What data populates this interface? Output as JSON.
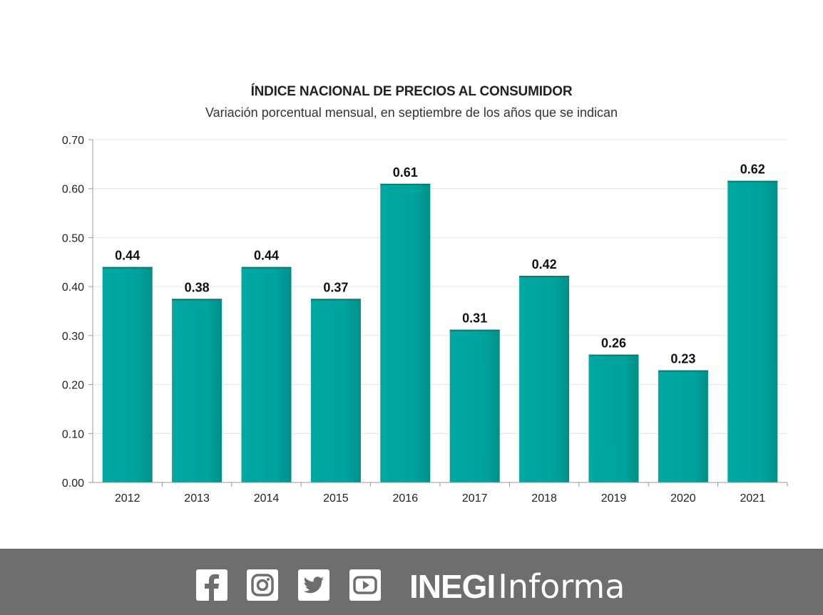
{
  "chart_data": {
    "type": "bar",
    "title": "ÍNDICE NACIONAL DE PRECIOS AL CONSUMIDOR",
    "subtitle": "Variación porcentual mensual, en septiembre de los años que se indican",
    "categories": [
      "2012",
      "2013",
      "2014",
      "2015",
      "2016",
      "2017",
      "2018",
      "2019",
      "2020",
      "2021"
    ],
    "values": [
      0.44,
      0.375,
      0.44,
      0.375,
      0.61,
      0.312,
      0.422,
      0.261,
      0.229,
      0.616
    ],
    "data_labels": [
      "0.44",
      "0.38",
      "0.44",
      "0.37",
      "0.61",
      "0.31",
      "0.42",
      "0.26",
      "0.23",
      "0.62"
    ],
    "y_ticks": [
      "0.00",
      "0.10",
      "0.20",
      "0.30",
      "0.40",
      "0.50",
      "0.60",
      "0.70"
    ],
    "ylim": [
      0,
      0.7
    ],
    "grid": true,
    "bar_color": "#00a39c",
    "xlabel": "",
    "ylabel": ""
  },
  "footer": {
    "background": "#6d6e70",
    "social_icons": [
      "facebook-icon",
      "instagram-icon",
      "twitter-icon",
      "youtube-icon"
    ],
    "brand_bold": "INEGI",
    "brand_light": "Informa"
  }
}
